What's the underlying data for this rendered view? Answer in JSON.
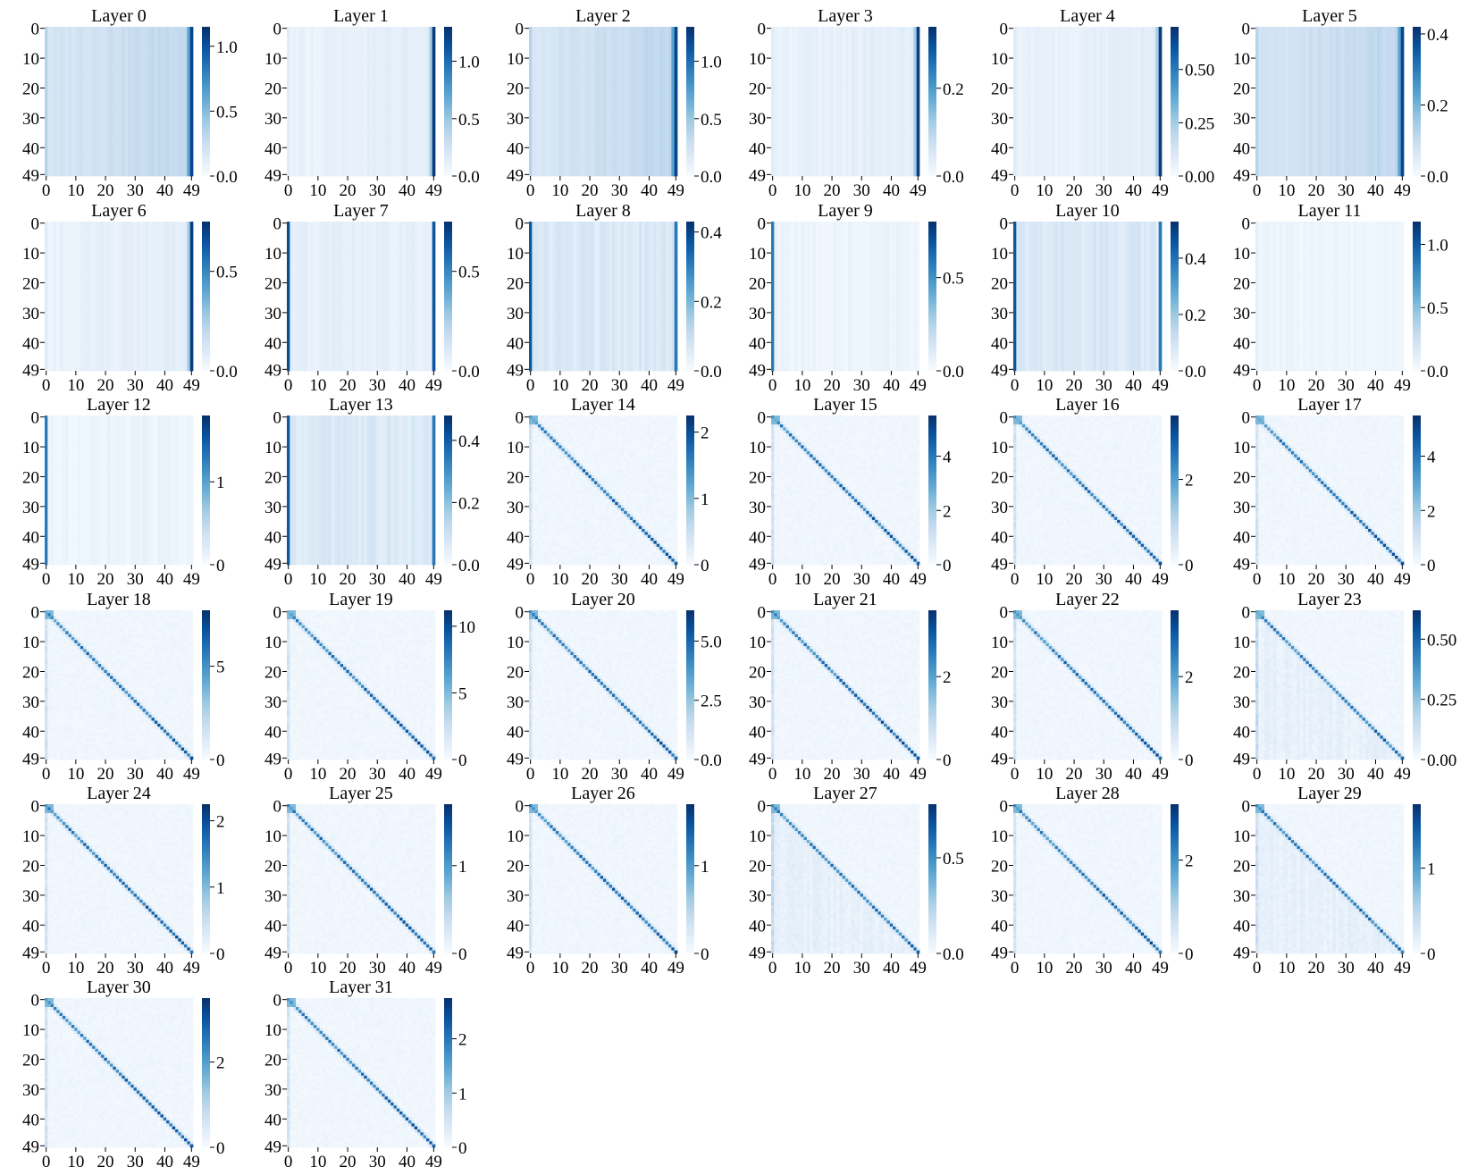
{
  "colormap": {
    "name": "Blues",
    "low": "#f7fbff",
    "high": "#08306b"
  },
  "chart_data": [
    {
      "type": "heatmap",
      "title": "Layer 0",
      "pattern": "vcols",
      "rows": 50,
      "cols": 50,
      "x_ticks": [
        0,
        10,
        20,
        30,
        40,
        49
      ],
      "y_ticks": [
        0,
        10,
        20,
        30,
        40,
        49
      ],
      "colorbar": {
        "ticks": [
          "0.0",
          "0.5",
          "1.0"
        ],
        "tick_values": [
          0,
          0.5,
          1.0
        ],
        "vmin": 0,
        "vmax": 1.15
      }
    },
    {
      "type": "heatmap",
      "title": "Layer 1",
      "pattern": "lastcol",
      "rows": 50,
      "cols": 50,
      "x_ticks": [
        0,
        10,
        20,
        30,
        40,
        49
      ],
      "y_ticks": [
        0,
        10,
        20,
        30,
        40,
        49
      ],
      "colorbar": {
        "ticks": [
          "0.0",
          "0.5",
          "1.0"
        ],
        "tick_values": [
          0,
          0.5,
          1.0
        ],
        "vmin": 0,
        "vmax": 1.3
      }
    },
    {
      "type": "heatmap",
      "title": "Layer 2",
      "pattern": "vcols",
      "rows": 50,
      "cols": 50,
      "x_ticks": [
        0,
        10,
        20,
        30,
        40,
        49
      ],
      "y_ticks": [
        0,
        10,
        20,
        30,
        40,
        49
      ],
      "colorbar": {
        "ticks": [
          "0.0",
          "0.5",
          "1.0"
        ],
        "tick_values": [
          0,
          0.5,
          1.0
        ],
        "vmin": 0,
        "vmax": 1.3
      }
    },
    {
      "type": "heatmap",
      "title": "Layer 3",
      "pattern": "lastcol",
      "rows": 50,
      "cols": 50,
      "x_ticks": [
        0,
        10,
        20,
        30,
        40,
        49
      ],
      "y_ticks": [
        0,
        10,
        20,
        30,
        40,
        49
      ],
      "colorbar": {
        "ticks": [
          "0.0",
          "0.2"
        ],
        "tick_values": [
          0,
          0.2
        ],
        "vmin": 0,
        "vmax": 0.34
      }
    },
    {
      "type": "heatmap",
      "title": "Layer 4",
      "pattern": "lastcol",
      "rows": 50,
      "cols": 50,
      "x_ticks": [
        0,
        10,
        20,
        30,
        40,
        49
      ],
      "y_ticks": [
        0,
        10,
        20,
        30,
        40,
        49
      ],
      "colorbar": {
        "ticks": [
          "0.00",
          "0.25",
          "0.50"
        ],
        "tick_values": [
          0,
          0.25,
          0.5
        ],
        "vmin": 0,
        "vmax": 0.7
      }
    },
    {
      "type": "heatmap",
      "title": "Layer 5",
      "pattern": "vcols",
      "rows": 50,
      "cols": 50,
      "x_ticks": [
        0,
        10,
        20,
        30,
        40,
        49
      ],
      "y_ticks": [
        0,
        10,
        20,
        30,
        40,
        49
      ],
      "colorbar": {
        "ticks": [
          "0.0",
          "0.2",
          "0.4"
        ],
        "tick_values": [
          0,
          0.2,
          0.4
        ],
        "vmin": 0,
        "vmax": 0.42
      }
    },
    {
      "type": "heatmap",
      "title": "Layer 6",
      "pattern": "lastcol",
      "rows": 50,
      "cols": 50,
      "x_ticks": [
        0,
        10,
        20,
        30,
        40,
        49
      ],
      "y_ticks": [
        0,
        10,
        20,
        30,
        40,
        49
      ],
      "colorbar": {
        "ticks": [
          "0.0",
          "0.5"
        ],
        "tick_values": [
          0,
          0.5
        ],
        "vmin": 0,
        "vmax": 0.75
      }
    },
    {
      "type": "heatmap",
      "title": "Layer 7",
      "pattern": "twocol",
      "rows": 50,
      "cols": 50,
      "x_ticks": [
        0,
        10,
        20,
        30,
        40,
        49
      ],
      "y_ticks": [
        0,
        10,
        20,
        30,
        40,
        49
      ],
      "colorbar": {
        "ticks": [
          "0.0",
          "0.5"
        ],
        "tick_values": [
          0,
          0.5
        ],
        "vmin": 0,
        "vmax": 0.75
      }
    },
    {
      "type": "heatmap",
      "title": "Layer 8",
      "pattern": "vcols2",
      "rows": 50,
      "cols": 50,
      "x_ticks": [
        0,
        10,
        20,
        30,
        40,
        49
      ],
      "y_ticks": [
        0,
        10,
        20,
        30,
        40,
        49
      ],
      "colorbar": {
        "ticks": [
          "0.0",
          "0.2",
          "0.4"
        ],
        "tick_values": [
          0,
          0.2,
          0.4
        ],
        "vmin": 0,
        "vmax": 0.43
      }
    },
    {
      "type": "heatmap",
      "title": "Layer 9",
      "pattern": "firstcol",
      "rows": 50,
      "cols": 50,
      "x_ticks": [
        0,
        10,
        20,
        30,
        40,
        49
      ],
      "y_ticks": [
        0,
        10,
        20,
        30,
        40,
        49
      ],
      "colorbar": {
        "ticks": [
          "0.0",
          "0.5"
        ],
        "tick_values": [
          0,
          0.5
        ],
        "vmin": 0,
        "vmax": 0.8
      }
    },
    {
      "type": "heatmap",
      "title": "Layer 10",
      "pattern": "vcols2",
      "rows": 50,
      "cols": 50,
      "x_ticks": [
        0,
        10,
        20,
        30,
        40,
        49
      ],
      "y_ticks": [
        0,
        10,
        20,
        30,
        40,
        49
      ],
      "colorbar": {
        "ticks": [
          "0.0",
          "0.2",
          "0.4"
        ],
        "tick_values": [
          0,
          0.2,
          0.4
        ],
        "vmin": 0,
        "vmax": 0.53
      }
    },
    {
      "type": "heatmap",
      "title": "Layer 11",
      "pattern": "faint",
      "rows": 50,
      "cols": 50,
      "x_ticks": [
        0,
        10,
        20,
        30,
        40,
        49
      ],
      "y_ticks": [
        0,
        10,
        20,
        30,
        40,
        49
      ],
      "colorbar": {
        "ticks": [
          "0.0",
          "0.5",
          "1.0"
        ],
        "tick_values": [
          0,
          0.5,
          1.0
        ],
        "vmin": 0,
        "vmax": 1.18
      }
    },
    {
      "type": "heatmap",
      "title": "Layer 12",
      "pattern": "firstcol",
      "rows": 50,
      "cols": 50,
      "x_ticks": [
        0,
        10,
        20,
        30,
        40,
        49
      ],
      "y_ticks": [
        0,
        10,
        20,
        30,
        40,
        49
      ],
      "colorbar": {
        "ticks": [
          "0",
          "1"
        ],
        "tick_values": [
          0,
          1
        ],
        "vmin": 0,
        "vmax": 1.8
      }
    },
    {
      "type": "heatmap",
      "title": "Layer 13",
      "pattern": "vcols2",
      "rows": 50,
      "cols": 50,
      "x_ticks": [
        0,
        10,
        20,
        30,
        40,
        49
      ],
      "y_ticks": [
        0,
        10,
        20,
        30,
        40,
        49
      ],
      "colorbar": {
        "ticks": [
          "0.0",
          "0.2",
          "0.4"
        ],
        "tick_values": [
          0,
          0.2,
          0.4
        ],
        "vmin": 0,
        "vmax": 0.48
      }
    },
    {
      "type": "heatmap",
      "title": "Layer 14",
      "pattern": "diag",
      "rows": 50,
      "cols": 50,
      "x_ticks": [
        0,
        10,
        20,
        30,
        40,
        49
      ],
      "y_ticks": [
        0,
        10,
        20,
        30,
        40,
        49
      ],
      "colorbar": {
        "ticks": [
          "0",
          "1",
          "2"
        ],
        "tick_values": [
          0,
          1,
          2
        ],
        "vmin": 0,
        "vmax": 2.25
      }
    },
    {
      "type": "heatmap",
      "title": "Layer 15",
      "pattern": "diag",
      "rows": 50,
      "cols": 50,
      "x_ticks": [
        0,
        10,
        20,
        30,
        40,
        49
      ],
      "y_ticks": [
        0,
        10,
        20,
        30,
        40,
        49
      ],
      "colorbar": {
        "ticks": [
          "0",
          "2",
          "4"
        ],
        "tick_values": [
          0,
          2,
          4
        ],
        "vmin": 0,
        "vmax": 5.5
      }
    },
    {
      "type": "heatmap",
      "title": "Layer 16",
      "pattern": "diag",
      "rows": 50,
      "cols": 50,
      "x_ticks": [
        0,
        10,
        20,
        30,
        40,
        49
      ],
      "y_ticks": [
        0,
        10,
        20,
        30,
        40,
        49
      ],
      "colorbar": {
        "ticks": [
          "0",
          "2"
        ],
        "tick_values": [
          0,
          2
        ],
        "vmin": 0,
        "vmax": 3.5
      }
    },
    {
      "type": "heatmap",
      "title": "Layer 17",
      "pattern": "diag",
      "rows": 50,
      "cols": 50,
      "x_ticks": [
        0,
        10,
        20,
        30,
        40,
        49
      ],
      "y_ticks": [
        0,
        10,
        20,
        30,
        40,
        49
      ],
      "colorbar": {
        "ticks": [
          "0",
          "2",
          "4"
        ],
        "tick_values": [
          0,
          2,
          4
        ],
        "vmin": 0,
        "vmax": 5.5
      }
    },
    {
      "type": "heatmap",
      "title": "Layer 18",
      "pattern": "diag",
      "rows": 50,
      "cols": 50,
      "x_ticks": [
        0,
        10,
        20,
        30,
        40,
        49
      ],
      "y_ticks": [
        0,
        10,
        20,
        30,
        40,
        49
      ],
      "colorbar": {
        "ticks": [
          "0",
          "5"
        ],
        "tick_values": [
          0,
          5
        ],
        "vmin": 0,
        "vmax": 8
      }
    },
    {
      "type": "heatmap",
      "title": "Layer 19",
      "pattern": "diag",
      "rows": 50,
      "cols": 50,
      "x_ticks": [
        0,
        10,
        20,
        30,
        40,
        49
      ],
      "y_ticks": [
        0,
        10,
        20,
        30,
        40,
        49
      ],
      "colorbar": {
        "ticks": [
          "0",
          "5",
          "10"
        ],
        "tick_values": [
          0,
          5,
          10
        ],
        "vmin": 0,
        "vmax": 11.2
      }
    },
    {
      "type": "heatmap",
      "title": "Layer 20",
      "pattern": "diag",
      "rows": 50,
      "cols": 50,
      "x_ticks": [
        0,
        10,
        20,
        30,
        40,
        49
      ],
      "y_ticks": [
        0,
        10,
        20,
        30,
        40,
        49
      ],
      "colorbar": {
        "ticks": [
          "0.0",
          "2.5",
          "5.0"
        ],
        "tick_values": [
          0,
          2.5,
          5.0
        ],
        "vmin": 0,
        "vmax": 6.3
      }
    },
    {
      "type": "heatmap",
      "title": "Layer 21",
      "pattern": "diag",
      "rows": 50,
      "cols": 50,
      "x_ticks": [
        0,
        10,
        20,
        30,
        40,
        49
      ],
      "y_ticks": [
        0,
        10,
        20,
        30,
        40,
        49
      ],
      "colorbar": {
        "ticks": [
          "0",
          "2"
        ],
        "tick_values": [
          0,
          2
        ],
        "vmin": 0,
        "vmax": 3.6
      }
    },
    {
      "type": "heatmap",
      "title": "Layer 22",
      "pattern": "diag",
      "rows": 50,
      "cols": 50,
      "x_ticks": [
        0,
        10,
        20,
        30,
        40,
        49
      ],
      "y_ticks": [
        0,
        10,
        20,
        30,
        40,
        49
      ],
      "colorbar": {
        "ticks": [
          "0",
          "2"
        ],
        "tick_values": [
          0,
          2
        ],
        "vmin": 0,
        "vmax": 3.6
      }
    },
    {
      "type": "heatmap",
      "title": "Layer 23",
      "pattern": "diagnoisy",
      "rows": 50,
      "cols": 50,
      "x_ticks": [
        0,
        10,
        20,
        30,
        40,
        49
      ],
      "y_ticks": [
        0,
        10,
        20,
        30,
        40,
        49
      ],
      "colorbar": {
        "ticks": [
          "0.00",
          "0.25",
          "0.50"
        ],
        "tick_values": [
          0,
          0.25,
          0.5
        ],
        "vmin": 0,
        "vmax": 0.62
      }
    },
    {
      "type": "heatmap",
      "title": "Layer 24",
      "pattern": "diag",
      "rows": 50,
      "cols": 50,
      "x_ticks": [
        0,
        10,
        20,
        30,
        40,
        49
      ],
      "y_ticks": [
        0,
        10,
        20,
        30,
        40,
        49
      ],
      "colorbar": {
        "ticks": [
          "0",
          "1",
          "2"
        ],
        "tick_values": [
          0,
          1,
          2
        ],
        "vmin": 0,
        "vmax": 2.25
      }
    },
    {
      "type": "heatmap",
      "title": "Layer 25",
      "pattern": "diag",
      "rows": 50,
      "cols": 50,
      "x_ticks": [
        0,
        10,
        20,
        30,
        40,
        49
      ],
      "y_ticks": [
        0,
        10,
        20,
        30,
        40,
        49
      ],
      "colorbar": {
        "ticks": [
          "0",
          "1"
        ],
        "tick_values": [
          0,
          1
        ],
        "vmin": 0,
        "vmax": 1.7
      }
    },
    {
      "type": "heatmap",
      "title": "Layer 26",
      "pattern": "diag",
      "rows": 50,
      "cols": 50,
      "x_ticks": [
        0,
        10,
        20,
        30,
        40,
        49
      ],
      "y_ticks": [
        0,
        10,
        20,
        30,
        40,
        49
      ],
      "colorbar": {
        "ticks": [
          "0",
          "1"
        ],
        "tick_values": [
          0,
          1
        ],
        "vmin": 0,
        "vmax": 1.7
      }
    },
    {
      "type": "heatmap",
      "title": "Layer 27",
      "pattern": "diagnoisy",
      "rows": 50,
      "cols": 50,
      "x_ticks": [
        0,
        10,
        20,
        30,
        40,
        49
      ],
      "y_ticks": [
        0,
        10,
        20,
        30,
        40,
        49
      ],
      "colorbar": {
        "ticks": [
          "0.0",
          "0.5"
        ],
        "tick_values": [
          0,
          0.5
        ],
        "vmin": 0,
        "vmax": 0.78
      }
    },
    {
      "type": "heatmap",
      "title": "Layer 28",
      "pattern": "diag",
      "rows": 50,
      "cols": 50,
      "x_ticks": [
        0,
        10,
        20,
        30,
        40,
        49
      ],
      "y_ticks": [
        0,
        10,
        20,
        30,
        40,
        49
      ],
      "colorbar": {
        "ticks": [
          "0",
          "2"
        ],
        "tick_values": [
          0,
          2
        ],
        "vmin": 0,
        "vmax": 3.2
      }
    },
    {
      "type": "heatmap",
      "title": "Layer 29",
      "pattern": "diagnoisy",
      "rows": 50,
      "cols": 50,
      "x_ticks": [
        0,
        10,
        20,
        30,
        40,
        49
      ],
      "y_ticks": [
        0,
        10,
        20,
        30,
        40,
        49
      ],
      "colorbar": {
        "ticks": [
          "0",
          "1"
        ],
        "tick_values": [
          0,
          1
        ],
        "vmin": 0,
        "vmax": 1.75
      }
    },
    {
      "type": "heatmap",
      "title": "Layer 30",
      "pattern": "diag",
      "rows": 50,
      "cols": 50,
      "x_ticks": [
        0,
        10,
        20,
        30,
        40,
        49
      ],
      "y_ticks": [
        0,
        10,
        20,
        30,
        40,
        49
      ],
      "colorbar": {
        "ticks": [
          "0",
          "2"
        ],
        "tick_values": [
          0,
          2
        ],
        "vmin": 0,
        "vmax": 3.5
      }
    },
    {
      "type": "heatmap",
      "title": "Layer 31",
      "pattern": "diag",
      "rows": 50,
      "cols": 50,
      "x_ticks": [
        0,
        10,
        20,
        30,
        40,
        49
      ],
      "y_ticks": [
        0,
        10,
        20,
        30,
        40,
        49
      ],
      "colorbar": {
        "ticks": [
          "0",
          "1",
          "2"
        ],
        "tick_values": [
          0,
          1,
          2
        ],
        "vmin": 0,
        "vmax": 2.75
      }
    }
  ]
}
